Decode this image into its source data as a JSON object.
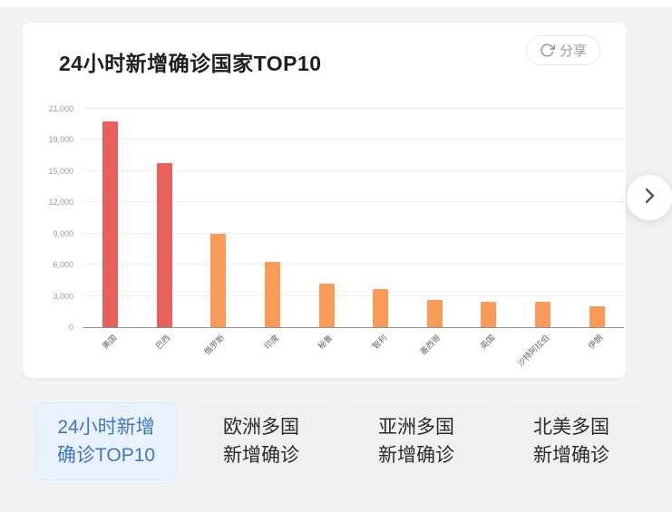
{
  "header": {
    "title": "24小时新增确诊国家TOP10",
    "share": {
      "label": "分享",
      "icon": "share-circular-arrow"
    }
  },
  "chart_data": {
    "type": "bar",
    "title": "24小时新增确诊国家TOP10",
    "categories": [
      "美国",
      "巴西",
      "俄罗斯",
      "印度",
      "秘鲁",
      "智利",
      "墨西哥",
      "英国",
      "沙特阿拉伯",
      "伊朗"
    ],
    "values": [
      19800,
      15800,
      9000,
      6300,
      4200,
      3700,
      2600,
      2400,
      2400,
      2000
    ],
    "bar_colors": [
      "#e9605a",
      "#e9605a",
      "#f89b58",
      "#f89b58",
      "#f89b58",
      "#f89b58",
      "#f89b58",
      "#f89b58",
      "#f89b58",
      "#f89b58"
    ],
    "yticks": [
      0,
      3000,
      6000,
      9000,
      12000,
      15000,
      18000,
      21000
    ],
    "ytick_labels": [
      "0",
      "3,000",
      "6,000",
      "9,000",
      "12,000",
      "15,000",
      "18,000",
      "21,000"
    ],
    "ylim": [
      0,
      21000
    ],
    "xlabel": "",
    "ylabel": "",
    "grid": true,
    "legend": "none",
    "x_label_rotation": 45
  },
  "carousel": {
    "next_icon": "chevron-right"
  },
  "tabs": [
    {
      "lines": [
        "24小时新增",
        "确诊TOP10"
      ],
      "active": true
    },
    {
      "lines": [
        "欧洲多国",
        "新增确诊"
      ],
      "active": false
    },
    {
      "lines": [
        "亚洲多国",
        "新增确诊"
      ],
      "active": false
    },
    {
      "lines": [
        "北美多国",
        "新增确诊"
      ],
      "active": false
    }
  ],
  "colors": {
    "accent_blue": "#3e77c0",
    "active_tab_bg": "#e8f1fc",
    "inactive_tab_bg": "#eef0f2",
    "bar_red": "#e9605a",
    "bar_orange": "#f89b58",
    "page_bg": "#f1f2f4"
  }
}
